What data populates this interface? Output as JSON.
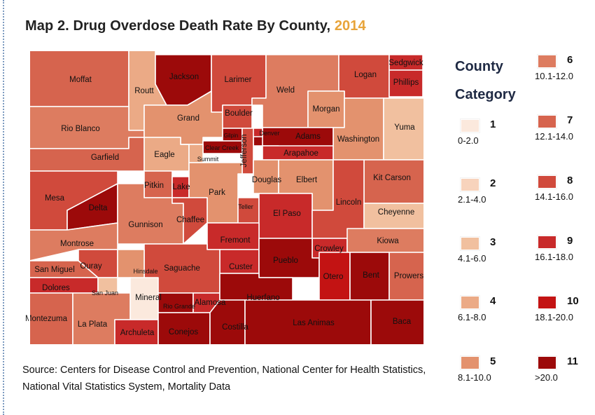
{
  "title": {
    "main": "Map 2. Drug Overdose Death Rate By County,",
    "year": "2014"
  },
  "legend": {
    "heading_line1": "County",
    "heading_line2": "Category",
    "categories": [
      {
        "id": 1,
        "label": "1",
        "range": "0-2.0",
        "color": "#fbe9dd"
      },
      {
        "id": 2,
        "label": "2",
        "range": "2.1-4.0",
        "color": "#f7d3bc"
      },
      {
        "id": 3,
        "label": "3",
        "range": "4.1-6.0",
        "color": "#f1c09f"
      },
      {
        "id": 4,
        "label": "4",
        "range": "6.1-8.0",
        "color": "#ebaa86"
      },
      {
        "id": 5,
        "label": "5",
        "range": "8.1-10.0",
        "color": "#e3926e"
      },
      {
        "id": 6,
        "label": "6",
        "range": "10.1-12.0",
        "color": "#dd7c60"
      },
      {
        "id": 7,
        "label": "7",
        "range": "12.1-14.0",
        "color": "#d6644e"
      },
      {
        "id": 8,
        "label": "8",
        "range": "14.1-16.0",
        "color": "#d04a3c"
      },
      {
        "id": 9,
        "label": "9",
        "range": "16.1-18.0",
        "color": "#c82a2a"
      },
      {
        "id": 10,
        "label": "10",
        "range": "18.1-20.0",
        "color": "#c31313"
      },
      {
        "id": 11,
        "label": "11",
        "range": ">20.0",
        "color": "#9c0a0a"
      }
    ]
  },
  "counties": [
    {
      "name": "Moffat",
      "category": 7
    },
    {
      "name": "Routt",
      "category": 4
    },
    {
      "name": "Jackson",
      "category": 11
    },
    {
      "name": "Larimer",
      "category": 8
    },
    {
      "name": "Weld",
      "category": 6
    },
    {
      "name": "Logan",
      "category": 8
    },
    {
      "name": "Sedgwick",
      "category": 9
    },
    {
      "name": "Phillips",
      "category": 9
    },
    {
      "name": "Morgan",
      "category": 5
    },
    {
      "name": "Washington",
      "category": 5
    },
    {
      "name": "Yuma",
      "category": 3
    },
    {
      "name": "Rio Blanco",
      "category": 6
    },
    {
      "name": "Grand",
      "category": 5
    },
    {
      "name": "Boulder",
      "category": 8
    },
    {
      "name": "Gilpin",
      "category": 11
    },
    {
      "name": "Clear Creek",
      "category": 11
    },
    {
      "name": "Denver",
      "category": 11
    },
    {
      "name": "Adams",
      "category": 11
    },
    {
      "name": "Broomfield",
      "category": 9
    },
    {
      "name": "Arapahoe",
      "category": 9
    },
    {
      "name": "Jefferson",
      "category": 8
    },
    {
      "name": "Garfield",
      "category": 7
    },
    {
      "name": "Eagle",
      "category": 4
    },
    {
      "name": "Summit",
      "category": 4
    },
    {
      "name": "Douglas",
      "category": 5
    },
    {
      "name": "Elbert",
      "category": 5
    },
    {
      "name": "Kit Carson",
      "category": 7
    },
    {
      "name": "Mesa",
      "category": 8
    },
    {
      "name": "Delta",
      "category": 11
    },
    {
      "name": "Pitkin",
      "category": 7
    },
    {
      "name": "Lake",
      "category": 9
    },
    {
      "name": "Park",
      "category": 5
    },
    {
      "name": "Teller",
      "category": 8
    },
    {
      "name": "El Paso",
      "category": 9
    },
    {
      "name": "Lincoln",
      "category": 8
    },
    {
      "name": "Cheyenne",
      "category": 3
    },
    {
      "name": "Gunnison",
      "category": 6
    },
    {
      "name": "Chaffee",
      "category": 8
    },
    {
      "name": "Montrose",
      "category": 6
    },
    {
      "name": "Fremont",
      "category": 9
    },
    {
      "name": "Crowley",
      "category": 9
    },
    {
      "name": "Kiowa",
      "category": 6
    },
    {
      "name": "Ouray",
      "category": 8
    },
    {
      "name": "Custer",
      "category": 9
    },
    {
      "name": "Saguache",
      "category": 8
    },
    {
      "name": "Pueblo",
      "category": 11
    },
    {
      "name": "San Miguel",
      "category": 7
    },
    {
      "name": "Hinsdale",
      "category": 5
    },
    {
      "name": "Otero",
      "category": 10
    },
    {
      "name": "Bent",
      "category": 11
    },
    {
      "name": "Prowers",
      "category": 7
    },
    {
      "name": "Dolores",
      "category": 9
    },
    {
      "name": "San Juan",
      "category": 3
    },
    {
      "name": "Mineral",
      "category": 1
    },
    {
      "name": "Rio Grande",
      "category": 11
    },
    {
      "name": "Alamosa",
      "category": 9
    },
    {
      "name": "Huerfano",
      "category": 11
    },
    {
      "name": "Montezuma",
      "category": 7
    },
    {
      "name": "La Plata",
      "category": 6
    },
    {
      "name": "Archuleta",
      "category": 9
    },
    {
      "name": "Conejos",
      "category": 11
    },
    {
      "name": "Costilla",
      "category": 11
    },
    {
      "name": "Las Animas",
      "category": 11
    },
    {
      "name": "Baca",
      "category": 11
    }
  ],
  "source": {
    "line1": "Source: Centers for Disease Control and Prevention, National Center for Health Statistics,",
    "line2": "National Vital Statistics System, Mortality Data"
  }
}
